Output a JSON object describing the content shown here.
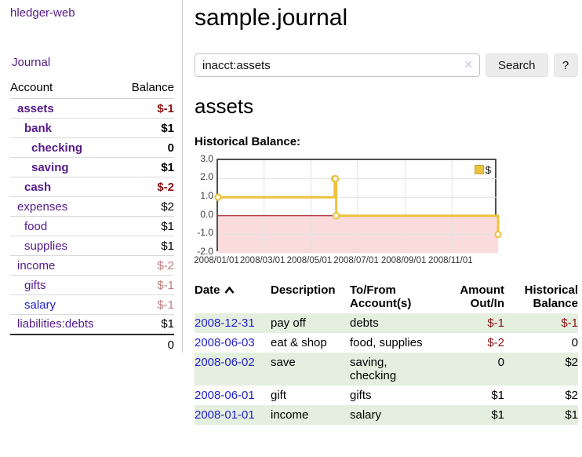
{
  "app": {
    "brand": "hledger-web",
    "nav_journal": "Journal"
  },
  "sidebar": {
    "header": {
      "account": "Account",
      "balance": "Balance"
    },
    "rows": [
      {
        "label": "assets",
        "balance": "$-1",
        "indent": 1,
        "matched": true,
        "tone": "neg",
        "link": "visited"
      },
      {
        "label": "bank",
        "balance": "$1",
        "indent": 2,
        "matched": true,
        "tone": "normal",
        "link": "visited"
      },
      {
        "label": "checking",
        "balance": "0",
        "indent": 3,
        "matched": true,
        "tone": "normal",
        "link": "visited"
      },
      {
        "label": "saving",
        "balance": "$1",
        "indent": 3,
        "matched": true,
        "tone": "normal",
        "link": "visited"
      },
      {
        "label": "cash",
        "balance": "$-2",
        "indent": 2,
        "matched": true,
        "tone": "neg",
        "link": "visited"
      },
      {
        "label": "expenses",
        "balance": "$2",
        "indent": 1,
        "matched": false,
        "tone": "normal",
        "link": "visited"
      },
      {
        "label": "food",
        "balance": "$1",
        "indent": 2,
        "matched": false,
        "tone": "normal",
        "link": "visited"
      },
      {
        "label": "supplies",
        "balance": "$1",
        "indent": 2,
        "matched": false,
        "tone": "normal",
        "link": "visited"
      },
      {
        "label": "income",
        "balance": "$-2",
        "indent": 1,
        "matched": false,
        "tone": "neg-muted",
        "link": "visited"
      },
      {
        "label": "gifts",
        "balance": "$-1",
        "indent": 2,
        "matched": false,
        "tone": "neg-muted",
        "link": "visited"
      },
      {
        "label": "salary",
        "balance": "$-1",
        "indent": 2,
        "matched": false,
        "tone": "neg-muted",
        "link": "new"
      },
      {
        "label": "liabilities:debts",
        "balance": "$1",
        "indent": 1,
        "matched": false,
        "tone": "normal",
        "link": "visited"
      }
    ],
    "total": "0"
  },
  "header": {
    "title": "sample.journal"
  },
  "search": {
    "value": "inacct:assets",
    "clear_icon": "✕",
    "button_label": "Search",
    "help_label": "?"
  },
  "account_page": {
    "title": "assets",
    "chart_label": "Historical Balance:"
  },
  "chart_data": {
    "type": "line",
    "step": true,
    "title": "Historical Balance:",
    "legend": "$",
    "legend_position": "top-right",
    "ylim": [
      -2,
      3
    ],
    "y_ticks": [
      "3.0",
      "2.0",
      "1.0",
      "0.0",
      "-1.0",
      "-2.0"
    ],
    "x_ticks": [
      "2008/01/01",
      "2008/03/01",
      "2008/05/01",
      "2008/07/01",
      "2008/09/01",
      "2008/11/01"
    ],
    "x_range": [
      "2008-01-01",
      "2008-12-31"
    ],
    "grid": true,
    "negative_region_color": "#fbdcdc",
    "zero_line_color": "#a40000",
    "series": [
      {
        "name": "$",
        "color": "#edc240",
        "points": [
          [
            "2008-01-01",
            1
          ],
          [
            "2008-06-01",
            2
          ],
          [
            "2008-06-02",
            2
          ],
          [
            "2008-06-03",
            0
          ],
          [
            "2008-12-31",
            -1
          ]
        ]
      }
    ]
  },
  "register": {
    "columns": [
      "Date",
      "Description",
      "To/From\nAccount(s)",
      "Amount\nOut/In",
      "Historical\nBalance"
    ],
    "rows": [
      {
        "date": "2008-12-31",
        "description": "pay off",
        "accounts": "debts",
        "amount": "$-1",
        "amount_neg": true,
        "balance": "$-1",
        "balance_neg": true
      },
      {
        "date": "2008-06-03",
        "description": "eat & shop",
        "accounts": "food, supplies",
        "amount": "$-2",
        "amount_neg": true,
        "balance": "0",
        "balance_neg": false
      },
      {
        "date": "2008-06-02",
        "description": "save",
        "accounts": "saving,\nchecking",
        "amount": "0",
        "amount_neg": false,
        "balance": "$2",
        "balance_neg": false
      },
      {
        "date": "2008-06-01",
        "description": "gift",
        "accounts": "gifts",
        "amount": "$1",
        "amount_neg": false,
        "balance": "$2",
        "balance_neg": false
      },
      {
        "date": "2008-01-01",
        "description": "income",
        "accounts": "salary",
        "amount": "$1",
        "amount_neg": false,
        "balance": "$1",
        "balance_neg": false
      }
    ]
  }
}
